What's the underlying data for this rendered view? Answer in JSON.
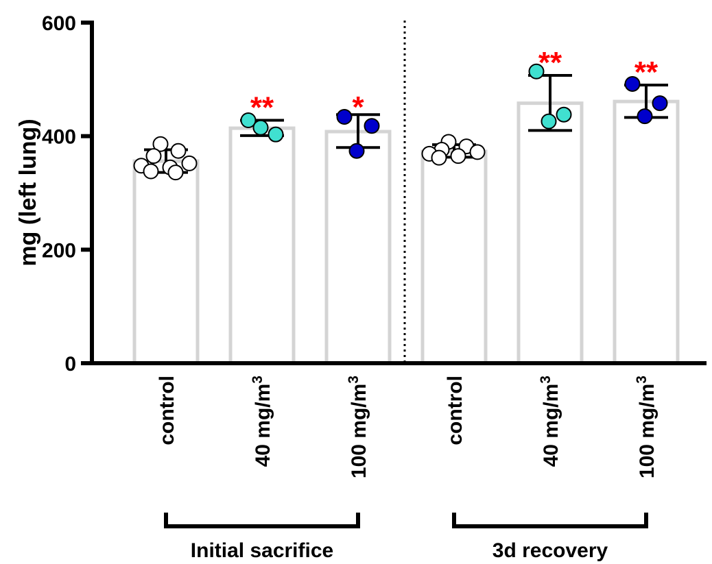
{
  "chart_data": {
    "type": "bar",
    "ylabel": "mg (left lung)",
    "xlabel": "",
    "ylim": [
      0,
      600
    ],
    "yticks": [
      0,
      200,
      400,
      600
    ],
    "grid": false,
    "bar_outline_color": "#d4d4d4",
    "categories": [
      {
        "label": "control",
        "sup": "",
        "group": 0,
        "value": 356,
        "err": [
          336,
          376
        ],
        "fill": "#ffffff",
        "points": [
          386,
          374,
          365,
          352,
          348,
          345,
          338,
          336
        ],
        "sig": "",
        "sig_color": "#ff0000"
      },
      {
        "label": "40 mg/m",
        "sup": "3",
        "group": 0,
        "value": 414,
        "err": [
          401,
          428
        ],
        "fill": "#40e0d0",
        "points": [
          428,
          403,
          415
        ],
        "sig": "**",
        "sig_color": "#ff0000"
      },
      {
        "label": "100 mg/m",
        "sup": "3",
        "group": 0,
        "value": 408,
        "err": [
          380,
          438
        ],
        "fill": "#0000cc",
        "points": [
          434,
          418,
          374
        ],
        "sig": "*",
        "sig_color": "#ff0000"
      },
      {
        "label": "control",
        "sup": "",
        "group": 1,
        "value": 373,
        "err": [
          363,
          385
        ],
        "fill": "#ffffff",
        "points": [
          390,
          382,
          376,
          372,
          369,
          365,
          362
        ],
        "sig": "",
        "sig_color": "#ff0000"
      },
      {
        "label": "40 mg/m",
        "sup": "3",
        "group": 1,
        "value": 458,
        "err": [
          410,
          507
        ],
        "fill": "#40e0d0",
        "points": [
          514,
          438,
          426
        ],
        "sig": "**",
        "sig_color": "#ff0000"
      },
      {
        "label": "100 mg/m",
        "sup": "3",
        "group": 1,
        "value": 461,
        "err": [
          433,
          490
        ],
        "fill": "#0000cc",
        "points": [
          492,
          458,
          435
        ],
        "sig": "**",
        "sig_color": "#ff0000"
      }
    ],
    "groups": [
      {
        "label": "Initial sacrifice"
      },
      {
        "label": "3d recovery"
      }
    ]
  }
}
